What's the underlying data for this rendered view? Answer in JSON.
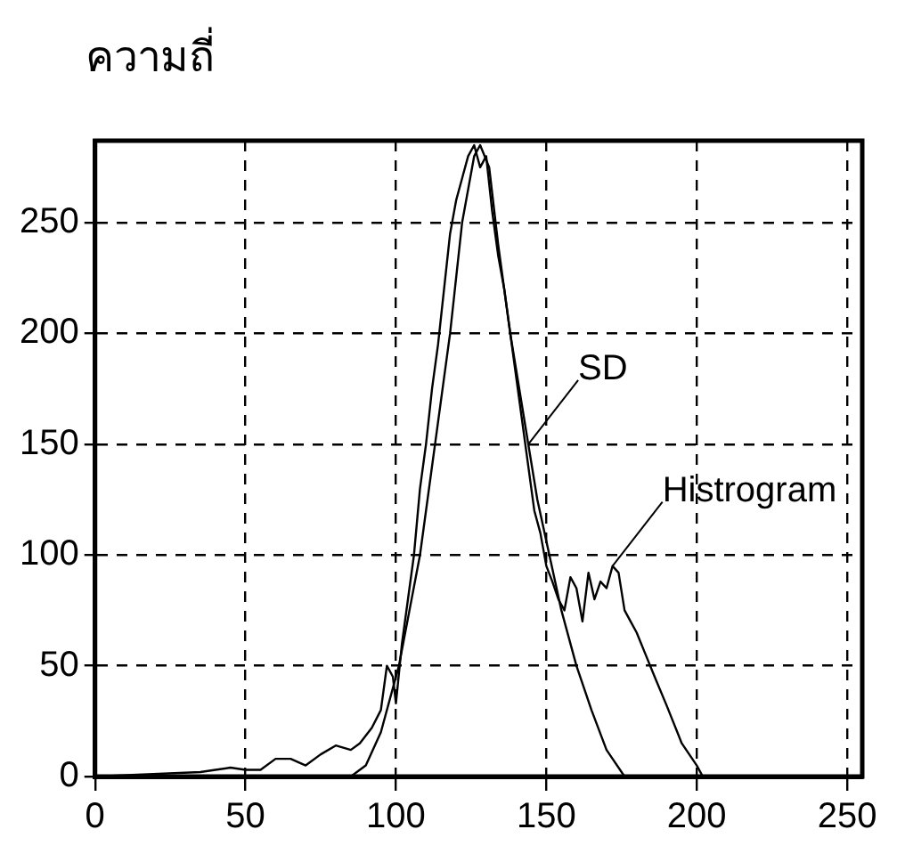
{
  "chart_data": {
    "type": "line",
    "ylabel": "ความถี่",
    "xlim": [
      0,
      255
    ],
    "ylim": [
      0,
      287
    ],
    "xticks": [
      0,
      50,
      100,
      150,
      200,
      250
    ],
    "yticks": [
      0,
      50,
      100,
      150,
      200,
      250
    ],
    "grid": true,
    "legend": false,
    "marker": "none",
    "line_style": "solid",
    "series": [
      {
        "color": "#000000",
        "x": [
          0,
          35,
          40,
          45,
          50,
          55,
          60,
          65,
          70,
          75,
          80,
          85,
          88,
          92,
          95,
          97,
          99,
          100,
          102,
          104,
          106,
          108,
          110,
          112,
          114,
          116,
          118,
          120,
          122,
          124,
          126,
          128,
          130,
          132,
          134,
          136,
          138,
          140,
          142,
          144,
          146,
          148,
          150,
          152,
          154,
          156,
          158,
          160,
          162,
          164,
          166,
          168,
          170,
          172,
          174,
          176,
          178,
          180,
          183,
          186,
          190,
          195,
          200,
          202,
          255
        ],
        "values": [
          0,
          2,
          3,
          4,
          3,
          3,
          8,
          8,
          5,
          10,
          14,
          12,
          15,
          22,
          30,
          50,
          45,
          33,
          60,
          80,
          100,
          130,
          150,
          175,
          195,
          220,
          245,
          260,
          270,
          280,
          285,
          275,
          280,
          255,
          235,
          220,
          200,
          180,
          160,
          140,
          120,
          110,
          95,
          88,
          80,
          75,
          90,
          85,
          70,
          92,
          80,
          88,
          85,
          95,
          92,
          75,
          70,
          65,
          55,
          45,
          32,
          15,
          5,
          0,
          0
        ]
      },
      {
        "color": "#000000",
        "x": [
          0,
          85,
          90,
          95,
          101,
          108,
          113,
          118,
          122,
          126,
          128,
          131,
          134,
          138,
          141,
          144,
          147,
          151,
          155,
          160,
          165,
          170,
          176,
          255
        ],
        "values": [
          0,
          0,
          5,
          20,
          50,
          100,
          150,
          200,
          250,
          280,
          285,
          275,
          240,
          200,
          175,
          150,
          125,
          100,
          75,
          50,
          30,
          12,
          0,
          0
        ]
      }
    ],
    "annotations": [
      {
        "text": "SD",
        "x": 144,
        "y": 150
      },
      {
        "text": "Histrogram",
        "x": 172,
        "y": 95
      }
    ]
  }
}
